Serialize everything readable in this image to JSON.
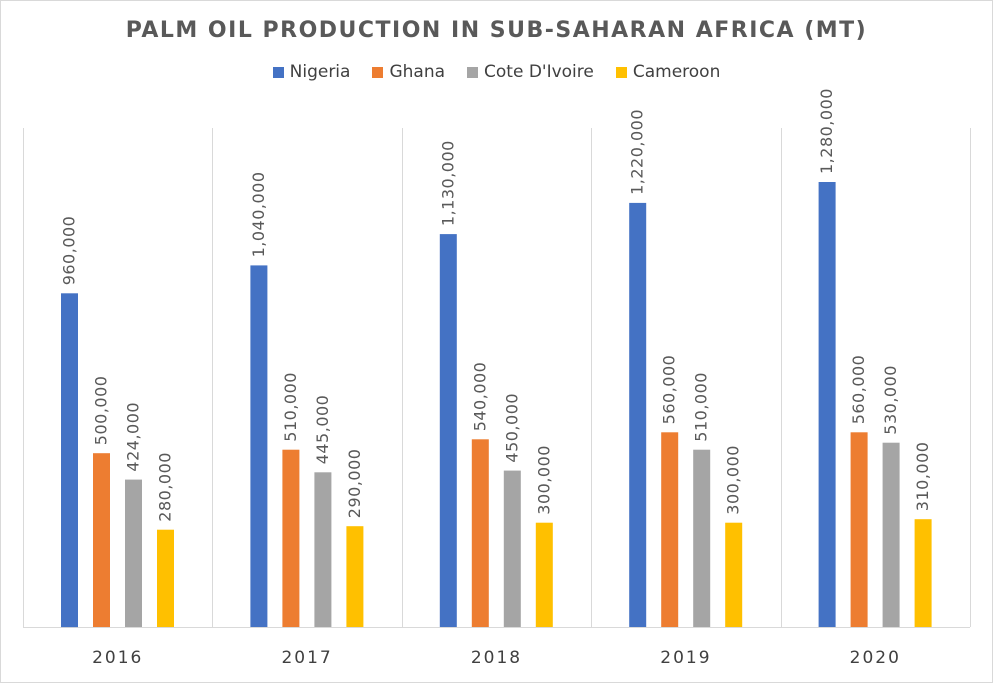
{
  "chart_data": {
    "type": "bar",
    "title": "PALM OIL PRODUCTION IN SUB-SAHARAN AFRICA (MT)",
    "categories": [
      "2016",
      "2017",
      "2018",
      "2019",
      "2020"
    ],
    "series": [
      {
        "name": "Nigeria",
        "color": "#4472c4",
        "values": [
          960000,
          1040000,
          1130000,
          1220000,
          1280000
        ],
        "labels": [
          "960,000",
          "1,040,000",
          "1,130,000",
          "1,220,000",
          "1,280,000"
        ]
      },
      {
        "name": "Ghana",
        "color": "#ed7d31",
        "values": [
          500000,
          510000,
          540000,
          560000,
          560000
        ],
        "labels": [
          "500,000",
          "510,000",
          "540,000",
          "560,000",
          "560,000"
        ]
      },
      {
        "name": "Cote D'Ivoire",
        "color": "#a5a5a5",
        "values": [
          424000,
          445000,
          450000,
          510000,
          530000
        ],
        "labels": [
          "424,000",
          "445,000",
          "450,000",
          "510,000",
          "530,000"
        ]
      },
      {
        "name": "Cameroon",
        "color": "#ffc000",
        "values": [
          280000,
          290000,
          300000,
          300000,
          310000
        ],
        "labels": [
          "280,000",
          "290,000",
          "300,000",
          "300,000",
          "310,000"
        ]
      }
    ],
    "xlabel": "",
    "ylabel": "",
    "ylim": [
      0,
      1400000
    ],
    "legend": "top",
    "grid": "vertical category separators"
  }
}
